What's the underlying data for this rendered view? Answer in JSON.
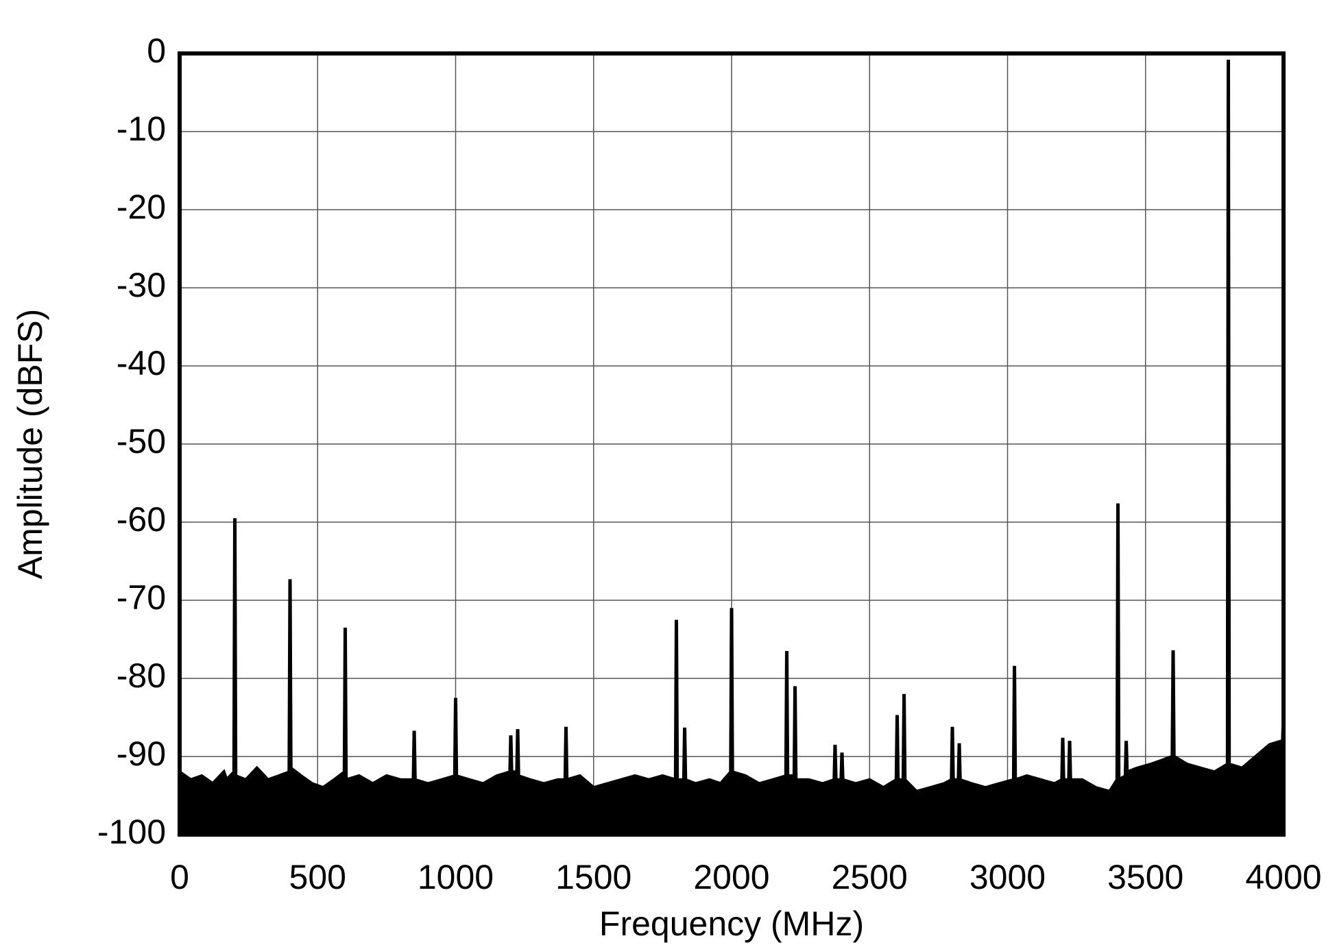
{
  "chart_data": {
    "type": "area",
    "x_label": "Frequency (MHz)",
    "y_label": "Amplitude (dBFS)",
    "xlim": [
      0,
      4000
    ],
    "ylim": [
      -100,
      0
    ],
    "xticks": [
      0,
      500,
      1000,
      1500,
      2000,
      2500,
      3000,
      3500,
      4000
    ],
    "yticks": [
      0,
      -10,
      -20,
      -30,
      -40,
      -50,
      -60,
      -70,
      -80,
      -90,
      -100
    ],
    "grid": true,
    "x": [
      0,
      40,
      80,
      120,
      160,
      170,
      197,
      200,
      203,
      240,
      280,
      320,
      360,
      397,
      400,
      403,
      440,
      480,
      520,
      560,
      597,
      600,
      603,
      650,
      700,
      750,
      800,
      847,
      850,
      853,
      900,
      950,
      997,
      1000,
      1003,
      1050,
      1100,
      1150,
      1197,
      1200,
      1203,
      1222,
      1225,
      1228,
      1270,
      1320,
      1370,
      1397,
      1400,
      1403,
      1450,
      1500,
      1550,
      1600,
      1650,
      1700,
      1750,
      1797,
      1800,
      1803,
      1827,
      1830,
      1833,
      1870,
      1920,
      1960,
      1997,
      2000,
      2003,
      2050,
      2100,
      2150,
      2197,
      2200,
      2203,
      2227,
      2230,
      2233,
      2280,
      2330,
      2372,
      2375,
      2378,
      2397,
      2400,
      2403,
      2450,
      2500,
      2550,
      2597,
      2600,
      2603,
      2622,
      2625,
      2628,
      2670,
      2720,
      2770,
      2797,
      2800,
      2803,
      2822,
      2825,
      2828,
      2870,
      2920,
      2970,
      3022,
      3025,
      3028,
      3070,
      3120,
      3170,
      3197,
      3200,
      3203,
      3222,
      3225,
      3228,
      3270,
      3320,
      3370,
      3397,
      3400,
      3403,
      3427,
      3430,
      3433,
      3470,
      3520,
      3560,
      3597,
      3600,
      3603,
      3650,
      3700,
      3750,
      3797,
      3800,
      3803,
      3850,
      3900,
      3950,
      3997,
      4000
    ],
    "series": [
      {
        "color": "#000000",
        "values": [
          -92,
          -93,
          -92.5,
          -93.5,
          -92,
          -93,
          -92,
          -59.5,
          -92.5,
          -93,
          -91.5,
          -93,
          -92.5,
          -92,
          -67.3,
          -91.5,
          -92.5,
          -93.5,
          -94,
          -93,
          -92,
          -73.5,
          -93,
          -92.5,
          -93.5,
          -92.5,
          -93,
          -93,
          -86.7,
          -93,
          -93.5,
          -93,
          -92.5,
          -82.5,
          -92.5,
          -93,
          -93.5,
          -92.5,
          -92,
          -87.3,
          -92,
          -92,
          -86.5,
          -92.5,
          -93,
          -93.5,
          -93,
          -93,
          -86.2,
          -93,
          -92.5,
          -94,
          -93.5,
          -93,
          -92.5,
          -93,
          -92.5,
          -93,
          -72.5,
          -93,
          -93,
          -86.3,
          -93,
          -93.5,
          -93,
          -93.5,
          -92,
          -71,
          -92,
          -92.5,
          -93.5,
          -93,
          -92.5,
          -76.5,
          -92.5,
          -92.5,
          -81,
          -93,
          -93,
          -93.5,
          -93,
          -88.5,
          -93,
          -93,
          -89.5,
          -93,
          -93.5,
          -93,
          -94,
          -93,
          -84.7,
          -93,
          -93,
          -82,
          -93,
          -94.5,
          -94,
          -93.5,
          -93,
          -86.2,
          -93,
          -93,
          -88.3,
          -93,
          -93.5,
          -94,
          -93.5,
          -93,
          -78.4,
          -93,
          -92.5,
          -93,
          -93.5,
          -93,
          -87.6,
          -93,
          -93,
          -88,
          -93,
          -93,
          -94,
          -94.5,
          -93,
          -57.6,
          -93,
          -92.5,
          -88,
          -92,
          -91.5,
          -91,
          -90.5,
          -90,
          -76.4,
          -90,
          -91,
          -91.5,
          -92,
          -91,
          -0.8,
          -91,
          -91.5,
          -90,
          -88.5,
          -88,
          -84.5
        ]
      }
    ]
  }
}
